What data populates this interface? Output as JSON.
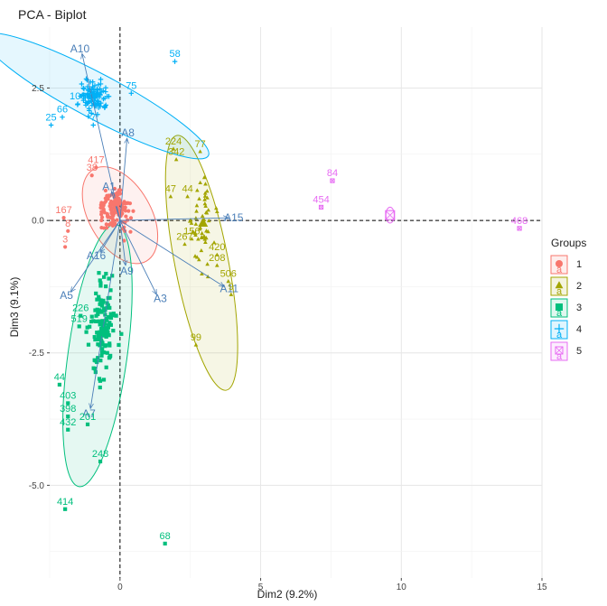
{
  "chart_data": {
    "type": "scatter",
    "title": "PCA - Biplot",
    "xlabel": "Dim2 (9.2%)",
    "ylabel": "Dim3 (9.1%)",
    "xlim": [
      -2.5,
      15
    ],
    "ylim": [
      -6.75,
      3.65
    ],
    "x_ticks": [
      0,
      5,
      10,
      15
    ],
    "x_tick_labels": [
      "0",
      "5",
      "10",
      "15"
    ],
    "y_ticks": [
      2.5,
      0,
      -2.5,
      -5
    ],
    "y_tick_labels": [
      "2.5",
      "0.0",
      "-2.5",
      "-5.0"
    ],
    "grid": true,
    "reference_lines": {
      "x": 0,
      "y": 0,
      "style": "dashed"
    },
    "legend": {
      "title": "Groups",
      "placement": "right",
      "entries": [
        {
          "label": "1",
          "color": "#F8766D",
          "shape": "circle"
        },
        {
          "label": "2",
          "color": "#A3A500",
          "shape": "triangle"
        },
        {
          "label": "3",
          "color": "#00BF7D",
          "shape": "square"
        },
        {
          "label": "4",
          "color": "#00B0F6",
          "shape": "cross"
        },
        {
          "label": "5",
          "color": "#E76BF3",
          "shape": "square-cross"
        }
      ]
    },
    "ellipses": [
      {
        "group": "1",
        "cx": 0.0,
        "cy": 0.1,
        "rx": 1.1,
        "ry": 1.0,
        "angle": -30
      },
      {
        "group": "2",
        "cx": 2.9,
        "cy": -0.8,
        "rx": 0.95,
        "ry": 2.45,
        "angle": -11
      },
      {
        "group": "3",
        "cx": -0.8,
        "cy": -2.55,
        "rx": 1.05,
        "ry": 2.5,
        "angle": 8
      },
      {
        "group": "4",
        "cx": -0.85,
        "cy": 2.35,
        "rx": 0.8,
        "ry": 2.4,
        "angle": -62
      },
      {
        "group": "5",
        "cx": 9.6,
        "cy": 0.1,
        "rx": 0.15,
        "ry": 0.15,
        "angle": 0
      }
    ],
    "centroids": [
      {
        "group": "1",
        "x": -0.1,
        "y": 0.35
      },
      {
        "group": "2",
        "x": 2.95,
        "y": -0.05
      },
      {
        "group": "3",
        "x": -0.55,
        "y": -2.1
      },
      {
        "group": "4",
        "x": -1.15,
        "y": 2.4
      },
      {
        "group": "5",
        "x": 9.6,
        "y": 0.1
      }
    ],
    "arrows": [
      {
        "label": "A10",
        "x": -1.35,
        "y": 3.15
      },
      {
        "label": "A8",
        "x": 0.25,
        "y": 1.55
      },
      {
        "label": "A1",
        "x": -0.3,
        "y": 0.55
      },
      {
        "label": "A15",
        "x": 3.85,
        "y": 0.05
      },
      {
        "label": "A11",
        "x": 3.7,
        "y": -1.25
      },
      {
        "label": "A16",
        "x": -0.7,
        "y": -0.6
      },
      {
        "label": "A9",
        "x": 0.2,
        "y": -0.85
      },
      {
        "label": "A3",
        "x": 1.3,
        "y": -1.4
      },
      {
        "label": "A5",
        "x": -1.75,
        "y": -1.35
      },
      {
        "label": "A7",
        "x": -1.05,
        "y": -3.55
      }
    ],
    "series": [
      {
        "name": "1",
        "labeled_points": [
          {
            "label": "167",
            "x": -2.0,
            "y": 0.05
          },
          {
            "label": "417",
            "x": -0.85,
            "y": 1.0
          },
          {
            "label": "38",
            "x": -1.0,
            "y": 0.85
          },
          {
            "label": "8",
            "x": -1.85,
            "y": -0.2
          },
          {
            "label": "3",
            "x": -1.95,
            "y": -0.5
          }
        ]
      },
      {
        "name": "2",
        "labeled_points": [
          {
            "label": "224",
            "x": 1.9,
            "y": 1.35
          },
          {
            "label": "342",
            "x": 2.0,
            "y": 1.15
          },
          {
            "label": "77",
            "x": 2.85,
            "y": 1.3
          },
          {
            "label": "47",
            "x": 1.8,
            "y": 0.45
          },
          {
            "label": "44",
            "x": 2.4,
            "y": 0.45
          },
          {
            "label": "156",
            "x": 2.55,
            "y": -0.35
          },
          {
            "label": "267",
            "x": 2.3,
            "y": -0.45
          },
          {
            "label": "420",
            "x": 3.45,
            "y": -0.65
          },
          {
            "label": "208",
            "x": 3.45,
            "y": -0.85
          },
          {
            "label": "506",
            "x": 3.85,
            "y": -1.15
          },
          {
            "label": "9",
            "x": 3.95,
            "y": -1.4
          },
          {
            "label": "99",
            "x": 2.7,
            "y": -2.35
          }
        ]
      },
      {
        "name": "3",
        "labeled_points": [
          {
            "label": "226",
            "x": -1.4,
            "y": -1.8
          },
          {
            "label": "519",
            "x": -1.45,
            "y": -2.0
          },
          {
            "label": "44",
            "x": -2.15,
            "y": -3.1
          },
          {
            "label": "403",
            "x": -1.85,
            "y": -3.45
          },
          {
            "label": "398",
            "x": -1.85,
            "y": -3.7
          },
          {
            "label": "432",
            "x": -1.85,
            "y": -3.95
          },
          {
            "label": "201",
            "x": -1.15,
            "y": -3.85
          },
          {
            "label": "248",
            "x": -0.7,
            "y": -4.55
          },
          {
            "label": "414",
            "x": -1.95,
            "y": -5.45
          },
          {
            "label": "68",
            "x": 1.6,
            "y": -6.1
          }
        ]
      },
      {
        "name": "4",
        "labeled_points": [
          {
            "label": "58",
            "x": 1.95,
            "y": 3.0
          },
          {
            "label": "106",
            "x": -1.5,
            "y": 2.2
          },
          {
            "label": "66",
            "x": -2.05,
            "y": 1.95
          },
          {
            "label": "25",
            "x": -2.45,
            "y": 1.8
          },
          {
            "label": "75",
            "x": 0.4,
            "y": 2.4
          },
          {
            "label": "7",
            "x": -0.95,
            "y": 1.8
          },
          {
            "label": "4",
            "x": -0.8,
            "y": 2.0
          }
        ]
      },
      {
        "name": "5",
        "labeled_points": [
          {
            "label": "84",
            "x": 7.55,
            "y": 0.75
          },
          {
            "label": "454",
            "x": 7.15,
            "y": 0.25
          },
          {
            "label": "468",
            "x": 14.2,
            "y": -0.15
          }
        ]
      }
    ]
  }
}
